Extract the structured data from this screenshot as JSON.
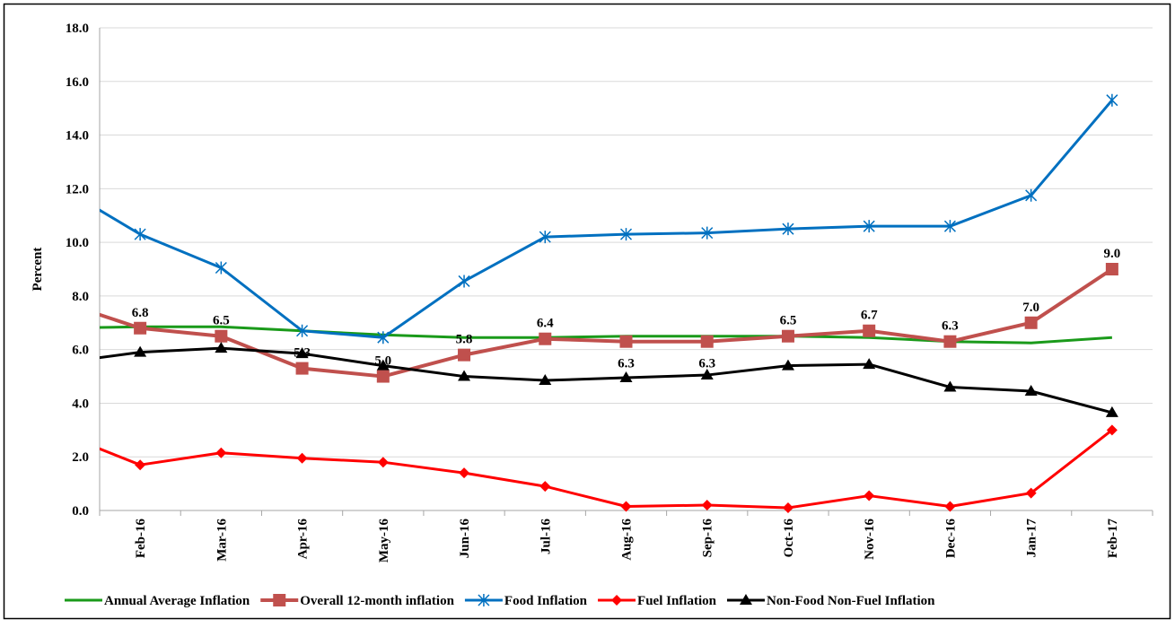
{
  "chart_data": {
    "type": "line",
    "y_label": "Percent",
    "categories": [
      null,
      "Feb-16",
      "Mar-16",
      "Apr-16",
      "May-16",
      "Jun-16",
      "Jul-16",
      "Aug-16",
      "Sep-16",
      "Oct-16",
      "Nov-16",
      "Dec-16",
      "Jan-17",
      "Feb-17"
    ],
    "ylim": [
      0,
      18
    ],
    "yticks": [
      {
        "value": 0,
        "label": "0.0"
      },
      {
        "value": 2,
        "label": "2.0"
      },
      {
        "value": 4,
        "label": "4.0"
      },
      {
        "value": 6,
        "label": "6.0"
      },
      {
        "value": 8,
        "label": "8.0"
      },
      {
        "value": 10,
        "label": "10.0"
      },
      {
        "value": 12,
        "label": "12.0"
      },
      {
        "value": 14,
        "label": "14.0"
      },
      {
        "value": 16,
        "label": "16.0"
      },
      {
        "value": 18,
        "label": "18.0"
      }
    ],
    "grid": true,
    "legend": "bottom",
    "series": [
      {
        "name": "Annual Average Inflation",
        "color": "#1a9a1a",
        "marker": "none",
        "values": [
          6.8,
          6.85,
          6.85,
          6.7,
          6.55,
          6.45,
          6.45,
          6.5,
          6.5,
          6.5,
          6.45,
          6.3,
          6.25,
          6.45
        ]
      },
      {
        "name": "Overall 12-month inflation",
        "color": "#c0504d",
        "marker": "square",
        "values": [
          7.8,
          6.8,
          6.5,
          5.3,
          5.0,
          5.8,
          6.4,
          6.3,
          6.3,
          6.5,
          6.7,
          6.3,
          7.0,
          9.0
        ],
        "value_labels": [
          null,
          "6.8",
          "6.5",
          "5.3",
          "5.0",
          "5.8",
          "6.4",
          "6.3",
          "6.3",
          "6.5",
          "6.7",
          "6.3",
          "7.0",
          "9.0"
        ]
      },
      {
        "name": "Food Inflation",
        "color": "#0070c0",
        "marker": "star",
        "values": [
          12.1,
          10.3,
          9.05,
          6.7,
          6.45,
          8.55,
          10.2,
          10.3,
          10.35,
          10.5,
          10.6,
          10.6,
          11.75,
          15.3
        ]
      },
      {
        "name": "Fuel Inflation",
        "color": "#ff0000",
        "marker": "diamond",
        "values": [
          2.9,
          1.7,
          2.15,
          1.95,
          1.8,
          1.4,
          0.9,
          0.15,
          0.2,
          0.1,
          0.55,
          0.15,
          0.65,
          3.0
        ]
      },
      {
        "name": "Non-Food Non-Fuel Inflation",
        "color": "#000000",
        "marker": "triangle",
        "values": [
          5.5,
          5.9,
          6.05,
          5.85,
          5.4,
          5.0,
          4.85,
          4.95,
          5.05,
          5.4,
          5.45,
          4.6,
          4.45,
          3.65
        ]
      }
    ]
  }
}
